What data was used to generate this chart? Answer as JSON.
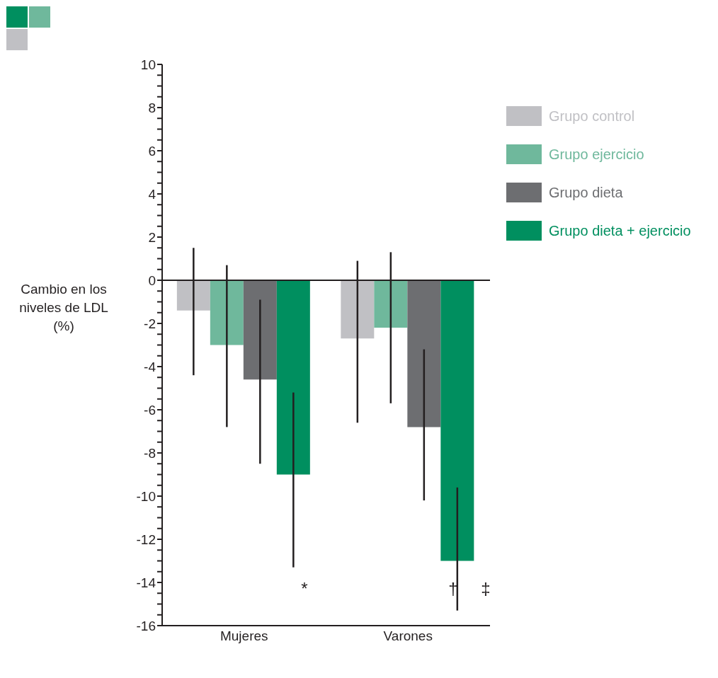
{
  "chart_data": {
    "type": "bar",
    "ylabel": "Cambio en los niveles de LDL (%)",
    "categories": [
      "Mujeres",
      "Varones"
    ],
    "series": [
      {
        "name": "Grupo control",
        "color": "#c0c0c4",
        "values": [
          -1.4,
          -2.7
        ],
        "errors": [
          [
            -4.4,
            1.5
          ],
          [
            -6.6,
            0.9
          ]
        ]
      },
      {
        "name": "Grupo ejercicio",
        "color": "#6fb89c",
        "values": [
          -3.0,
          -2.2
        ],
        "errors": [
          [
            -6.8,
            0.7
          ],
          [
            -5.7,
            1.3
          ]
        ]
      },
      {
        "name": "Grupo dieta",
        "color": "#6d6e71",
        "values": [
          -4.6,
          -6.8
        ],
        "errors": [
          [
            -8.5,
            -0.9
          ],
          [
            -10.2,
            -3.2
          ]
        ]
      },
      {
        "name": "Grupo dieta + ejercicio",
        "color": "#008f5f",
        "values": [
          -9.0,
          -13.0
        ],
        "errors": [
          [
            -13.3,
            -5.2
          ],
          [
            -15.3,
            -9.6
          ]
        ]
      }
    ],
    "ylim": [
      -16,
      10
    ],
    "yticks": [
      -16,
      {
        "value": -15.5,
        "label": null
      },
      {
        "value": -15,
        "label": null
      },
      {
        "value": -14.5,
        "label": null
      },
      -14,
      {
        "value": -13.5,
        "label": null
      },
      {
        "value": -13,
        "label": null
      },
      {
        "value": -12.5,
        "label": null
      },
      -12,
      {
        "value": -11.5,
        "label": null
      },
      {
        "value": -11,
        "label": null
      },
      {
        "value": -10.5,
        "label": null
      },
      -10,
      {
        "value": -9.5,
        "label": null
      },
      {
        "value": -9,
        "label": null
      },
      {
        "value": -8.5,
        "label": null
      },
      -8,
      {
        "value": -7.5,
        "label": null
      },
      {
        "value": -7,
        "label": null
      },
      {
        "value": -6.5,
        "label": null
      },
      -6,
      {
        "value": -5.5,
        "label": null
      },
      {
        "value": -5,
        "label": null
      },
      {
        "value": -4.5,
        "label": null
      },
      -4,
      {
        "value": -3.5,
        "label": null
      },
      {
        "value": -3,
        "label": null
      },
      {
        "value": -2.5,
        "label": null
      },
      -2,
      {
        "value": -1.5,
        "label": null
      },
      {
        "value": -1,
        "label": null
      },
      {
        "value": -0.5,
        "label": null
      },
      0,
      {
        "value": 0.5,
        "label": null
      },
      {
        "value": 1,
        "label": null
      },
      {
        "value": 1.5,
        "label": null
      },
      2,
      {
        "value": 2.5,
        "label": null
      },
      {
        "value": 3,
        "label": null
      },
      {
        "value": 3.5,
        "label": null
      },
      4,
      {
        "value": 4.5,
        "label": null
      },
      {
        "value": 5,
        "label": null
      },
      {
        "value": 5.5,
        "label": null
      },
      6,
      {
        "value": 6.5,
        "label": null
      },
      {
        "value": 7,
        "label": null
      },
      {
        "value": 7.5,
        "label": null
      },
      8,
      {
        "value": 8.5,
        "label": null
      },
      {
        "value": 9,
        "label": null
      },
      {
        "value": 9.5,
        "label": null
      },
      10
    ],
    "annotations": [
      "*",
      "†",
      "‡"
    ],
    "legend": "right"
  }
}
